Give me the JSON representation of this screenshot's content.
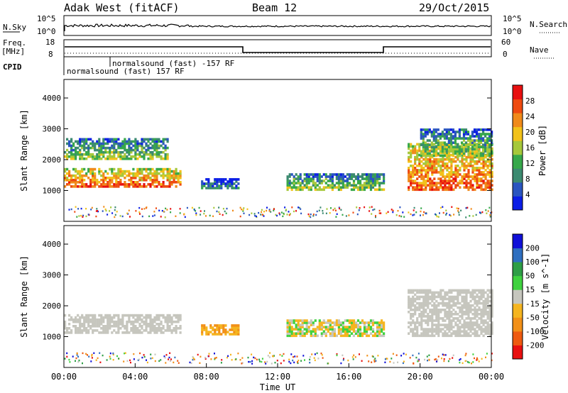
{
  "header": {
    "station": "Adak West (fitACF)",
    "beam": "Beam 12",
    "date": "29/Oct/2015"
  },
  "strips": {
    "nsky_label": "N.Sky",
    "nsky_ticks": [
      "10^5",
      "10^0"
    ],
    "nsearch_label": "N.Search",
    "freq_label": "Freq.",
    "freq_unit": "[MHz]",
    "freq_ticks": [
      "18",
      "8"
    ],
    "nave_label": "Nave",
    "nave_ticks": [
      "60",
      "0"
    ],
    "cpid_label": "CPID",
    "cpid_upper": "normalsound (fast) -157 RF",
    "cpid_lower": "normalsound (fast) 157 RF"
  },
  "colors": {
    "power": [
      "#0b1ee6",
      "#2a55c0",
      "#3b8a70",
      "#36a84a",
      "#a6c83a",
      "#f2c21a",
      "#f08a1a",
      "#ee4a10",
      "#e81010"
    ],
    "velocity": [
      "#e81010",
      "#ee5a10",
      "#f29018",
      "#f5b520",
      "#c6c6be",
      "#3fd23f",
      "#2e9e46",
      "#2f6fc0",
      "#1010d8"
    ],
    "series": "#000000"
  },
  "chart_data": [
    {
      "type": "heatmap",
      "name": "Power",
      "ylabel": "Slant Range [km]",
      "ylim": [
        0,
        4600
      ],
      "yticks": [
        "1000",
        "2000",
        "3000",
        "4000"
      ],
      "colorbar_label": "Power [dB]",
      "colorbar_ticks": [
        "4",
        "8",
        "12",
        "16",
        "20",
        "24",
        "28"
      ],
      "regions": [
        {
          "t": [
            0.0,
            6.6
          ],
          "r": [
            1100,
            1700
          ],
          "level": "high"
        },
        {
          "t": [
            0.0,
            5.8
          ],
          "r": [
            2000,
            2700
          ],
          "level": "medium"
        },
        {
          "t": [
            7.7,
            9.8
          ],
          "r": [
            1050,
            1400
          ],
          "level": "low"
        },
        {
          "t": [
            12.5,
            17.9
          ],
          "r": [
            1000,
            1550
          ],
          "level": "medium"
        },
        {
          "t": [
            19.3,
            24.0
          ],
          "r": [
            1000,
            2500
          ],
          "level": "high"
        },
        {
          "t": [
            20.0,
            24.0
          ],
          "r": [
            2100,
            3000
          ],
          "level": "medium"
        }
      ]
    },
    {
      "type": "heatmap",
      "name": "Velocity",
      "ylabel": "Slant Range [km]",
      "ylim": [
        0,
        4600
      ],
      "yticks": [
        "1000",
        "2000",
        "3000",
        "4000"
      ],
      "xlabel": "Time UT",
      "xticks": [
        "00:00",
        "04:00",
        "08:00",
        "12:00",
        "16:00",
        "20:00",
        "00:00"
      ],
      "colorbar_label": "Velocity [m s^-1]",
      "colorbar_ticks": [
        "-200",
        "-100",
        "-50",
        "-15",
        "15",
        "50",
        "100",
        "200"
      ],
      "regions": [
        {
          "t": [
            0.0,
            6.6
          ],
          "r": [
            1100,
            1700
          ],
          "level": "ground"
        },
        {
          "t": [
            7.7,
            9.8
          ],
          "r": [
            1050,
            1400
          ],
          "level": "away"
        },
        {
          "t": [
            12.5,
            17.9
          ],
          "r": [
            1000,
            1550
          ],
          "level": "mixed"
        },
        {
          "t": [
            19.3,
            24.0
          ],
          "r": [
            1000,
            2500
          ],
          "level": "ground"
        }
      ]
    }
  ]
}
